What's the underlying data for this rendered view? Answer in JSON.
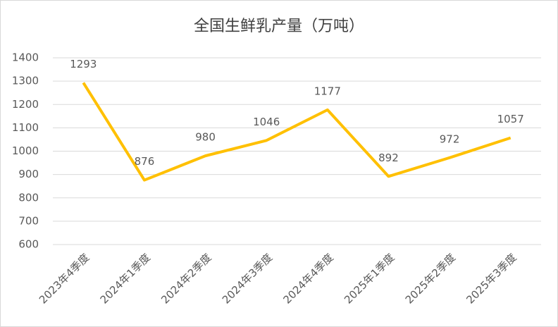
{
  "chart_data": {
    "type": "line",
    "title": "全国生鲜乳产量（万吨）",
    "categories": [
      "2023年4季度",
      "2024年1季度",
      "2024年2季度",
      "2024年3季度",
      "2024年4季度",
      "2025年1季度",
      "2025年2季度",
      "2025年3季度"
    ],
    "values": [
      1293,
      876,
      980,
      1046,
      1177,
      892,
      972,
      1057
    ],
    "color": "#ffc000",
    "ylim": [
      600,
      1400
    ],
    "yticks": [
      600,
      700,
      800,
      900,
      1000,
      1100,
      1200,
      1300,
      1400
    ],
    "grid": true
  }
}
